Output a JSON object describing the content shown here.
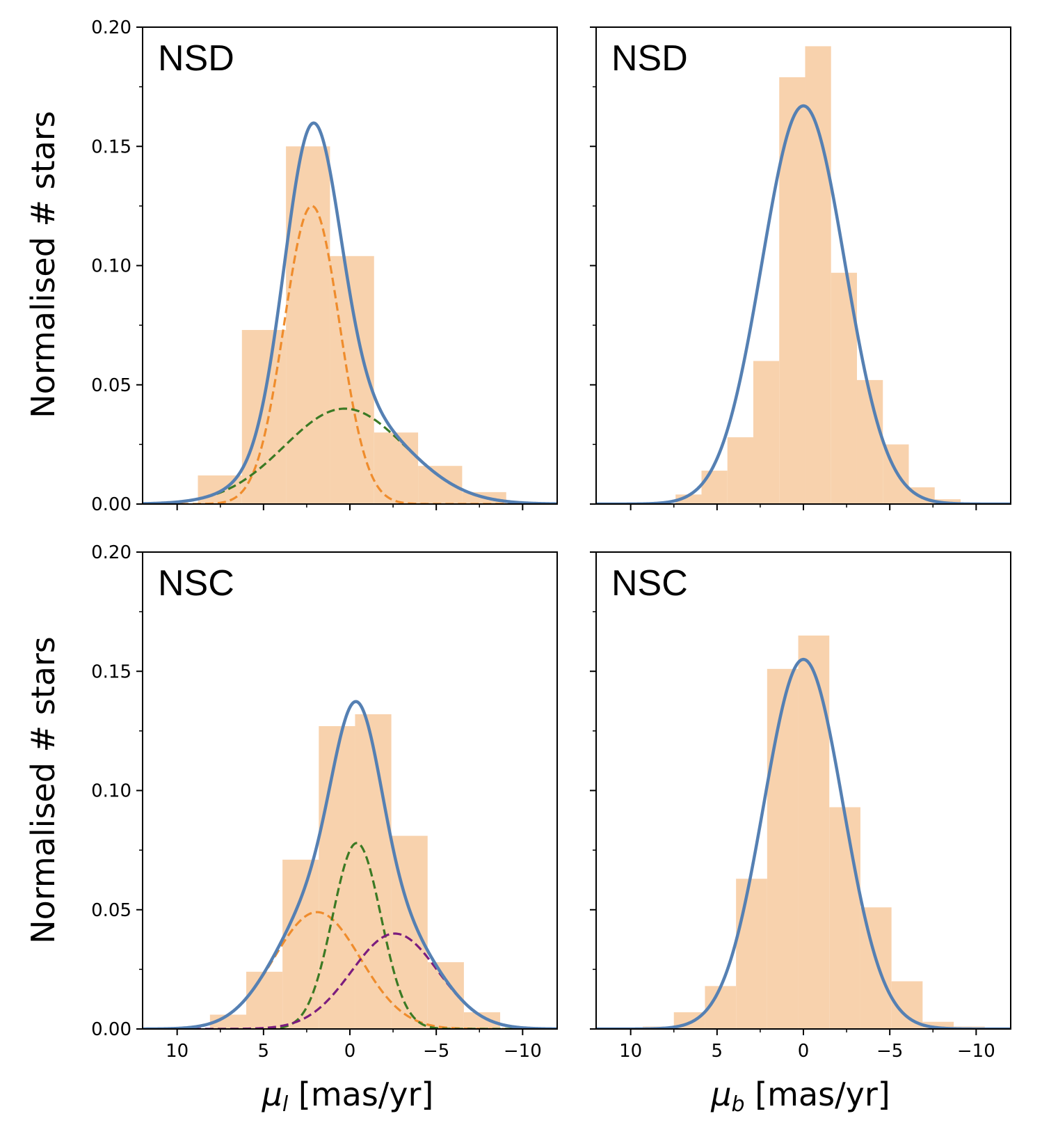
{
  "figure": {
    "ylabel": "Normalised # stars",
    "xlabel_left": {
      "symbol": "μ",
      "sub": "l",
      "unit": " [mas/yr]"
    },
    "xlabel_right": {
      "symbol": "μ",
      "sub": "b",
      "unit": " [mas/yr]"
    },
    "colors": {
      "histogram": "#f8d2ad",
      "total_fit": "#5580b3",
      "comp_orange": "#ef8c2c",
      "comp_green": "#3b7a24",
      "comp_purple": "#7b1c7e"
    }
  },
  "chart_data": [
    {
      "id": "nsd-mul",
      "type": "bar",
      "title": "NSD",
      "xlim": [
        12,
        -12
      ],
      "ylim": [
        0,
        0.2
      ],
      "xticks": [
        10,
        5,
        0,
        -5,
        -10
      ],
      "xtick_labels": [
        "10",
        "5",
        "0",
        "−5",
        "−10"
      ],
      "yticks": [
        0,
        0.05,
        0.1,
        0.15,
        0.2
      ],
      "ytick_labels": [
        "0.00",
        "0.05",
        "0.10",
        "0.15",
        "0.20"
      ],
      "show_xtick_labels": false,
      "show_ytick_labels": true,
      "histogram": {
        "bin_edges": [
          8.8,
          6.25,
          3.7,
          1.15,
          -1.4,
          -3.95,
          -6.5,
          -9.05
        ],
        "values": [
          0.012,
          0.073,
          0.15,
          0.104,
          0.03,
          0.016,
          0.005
        ]
      },
      "curves": [
        {
          "name": "component-1",
          "style": "dashed",
          "color_key": "comp_orange",
          "components": [
            {
              "amp": 0.125,
              "mu": 2.2,
              "sigma": 1.6
            }
          ]
        },
        {
          "name": "component-2",
          "style": "dashed",
          "color_key": "comp_green",
          "components": [
            {
              "amp": 0.04,
              "mu": 0.3,
              "sigma": 3.5
            }
          ]
        },
        {
          "name": "total-fit",
          "style": "solid",
          "color_key": "total_fit",
          "components": [
            {
              "amp": 0.125,
              "mu": 2.2,
              "sigma": 1.6
            },
            {
              "amp": 0.04,
              "mu": 0.3,
              "sigma": 3.5
            }
          ]
        }
      ]
    },
    {
      "id": "nsd-mub",
      "type": "bar",
      "title": "NSD",
      "xlim": [
        12,
        -12
      ],
      "ylim": [
        0,
        0.2
      ],
      "xticks": [
        10,
        5,
        0,
        -5,
        -10
      ],
      "xtick_labels": [
        "10",
        "5",
        "0",
        "−5",
        "−10"
      ],
      "yticks": [
        0,
        0.05,
        0.1,
        0.15,
        0.2
      ],
      "ytick_labels": [
        "0.00",
        "0.05",
        "0.10",
        "0.15",
        "0.20"
      ],
      "show_xtick_labels": false,
      "show_ytick_labels": false,
      "histogram": {
        "bin_edges": [
          7.4,
          5.9,
          4.4,
          2.9,
          1.4,
          -0.1,
          -1.6,
          -3.1,
          -4.6,
          -6.1,
          -7.6,
          -9.1
        ],
        "values": [
          0.004,
          0.014,
          0.028,
          0.06,
          0.179,
          0.192,
          0.097,
          0.052,
          0.025,
          0.007,
          0.002
        ]
      },
      "curves": [
        {
          "name": "total-fit",
          "style": "solid",
          "color_key": "total_fit",
          "components": [
            {
              "amp": 0.167,
              "mu": 0.0,
              "sigma": 2.4
            }
          ]
        }
      ]
    },
    {
      "id": "nsc-mul",
      "type": "bar",
      "title": "NSC",
      "xlim": [
        12,
        -12
      ],
      "ylim": [
        0,
        0.2
      ],
      "xticks": [
        10,
        5,
        0,
        -5,
        -10
      ],
      "xtick_labels": [
        "10",
        "5",
        "0",
        "−5",
        "−10"
      ],
      "yticks": [
        0,
        0.05,
        0.1,
        0.15,
        0.2
      ],
      "ytick_labels": [
        "0.00",
        "0.05",
        "0.10",
        "0.15",
        "0.20"
      ],
      "show_xtick_labels": true,
      "show_ytick_labels": true,
      "histogram": {
        "bin_edges": [
          8.1,
          6.0,
          3.9,
          1.8,
          -0.3,
          -2.4,
          -4.5,
          -6.6,
          -8.7
        ],
        "values": [
          0.006,
          0.024,
          0.071,
          0.127,
          0.132,
          0.081,
          0.028,
          0.007
        ]
      },
      "curves": [
        {
          "name": "component-1",
          "style": "dashed",
          "color_key": "comp_orange",
          "components": [
            {
              "amp": 0.049,
              "mu": 1.9,
              "sigma": 2.5
            }
          ]
        },
        {
          "name": "component-2",
          "style": "dashed",
          "color_key": "comp_green",
          "components": [
            {
              "amp": 0.078,
              "mu": -0.4,
              "sigma": 1.4
            }
          ]
        },
        {
          "name": "component-3",
          "style": "dashed",
          "color_key": "comp_purple",
          "components": [
            {
              "amp": 0.04,
              "mu": -2.6,
              "sigma": 2.5
            }
          ]
        },
        {
          "name": "total-fit",
          "style": "solid",
          "color_key": "total_fit",
          "components": [
            {
              "amp": 0.049,
              "mu": 1.9,
              "sigma": 2.5
            },
            {
              "amp": 0.078,
              "mu": -0.4,
              "sigma": 1.4
            },
            {
              "amp": 0.04,
              "mu": -2.6,
              "sigma": 2.5
            }
          ]
        }
      ]
    },
    {
      "id": "nsc-mub",
      "type": "bar",
      "title": "NSC",
      "xlim": [
        12,
        -12
      ],
      "ylim": [
        0,
        0.2
      ],
      "xticks": [
        10,
        5,
        0,
        -5,
        -10
      ],
      "xtick_labels": [
        "10",
        "5",
        "0",
        "−5",
        "−10"
      ],
      "yticks": [
        0,
        0.05,
        0.1,
        0.15,
        0.2
      ],
      "ytick_labels": [
        "0.00",
        "0.05",
        "0.10",
        "0.15",
        "0.20"
      ],
      "show_xtick_labels": true,
      "show_ytick_labels": false,
      "histogram": {
        "bin_edges": [
          9.3,
          7.5,
          5.7,
          3.9,
          2.1,
          0.3,
          -1.5,
          -3.3,
          -5.1,
          -6.9,
          -8.7,
          -10.5
        ],
        "values": [
          0.001,
          0.007,
          0.018,
          0.063,
          0.151,
          0.165,
          0.093,
          0.051,
          0.02,
          0.003,
          0.001
        ]
      },
      "curves": [
        {
          "name": "total-fit",
          "style": "solid",
          "color_key": "total_fit",
          "components": [
            {
              "amp": 0.155,
              "mu": 0.0,
              "sigma": 2.3
            }
          ]
        }
      ]
    }
  ]
}
